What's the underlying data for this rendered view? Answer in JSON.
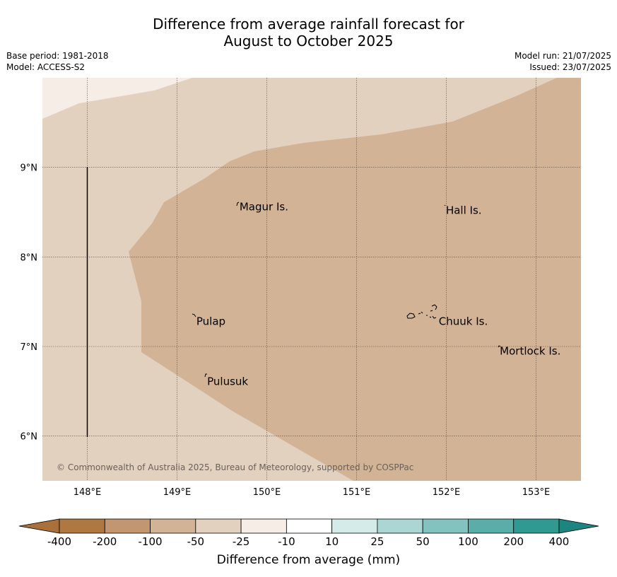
{
  "title": {
    "line1": "Difference from average rainfall forecast for",
    "line2": "August to October 2025"
  },
  "meta": {
    "base_period": "Base period: 1981-2018",
    "model": "Model: ACCESS-S2",
    "model_run": "Model run: 21/07/2025",
    "issued": "Issued: 23/07/2025"
  },
  "map": {
    "lon_range": [
      147.5,
      153.5
    ],
    "lat_range": [
      5.5,
      10.0
    ],
    "lon_ticks": [
      {
        "value": 148,
        "label": "148°E"
      },
      {
        "value": 149,
        "label": "149°E"
      },
      {
        "value": 150,
        "label": "150°E"
      },
      {
        "value": 151,
        "label": "151°E"
      },
      {
        "value": 152,
        "label": "152°E"
      },
      {
        "value": 153,
        "label": "153°E"
      }
    ],
    "lat_ticks": [
      {
        "value": 9,
        "label": "9°N"
      },
      {
        "value": 8,
        "label": "8°N"
      },
      {
        "value": 7,
        "label": "7°N"
      },
      {
        "value": 6,
        "label": "6°N"
      }
    ],
    "grid": true,
    "places": [
      {
        "name": "Magur Is.",
        "lon": 149.68,
        "lat": 8.56
      },
      {
        "name": "Hall Is.",
        "lon": 151.98,
        "lat": 8.52
      },
      {
        "name": "Pulap",
        "lon": 149.2,
        "lat": 7.28
      },
      {
        "name": "Chuuk Is.",
        "lon": 151.9,
        "lat": 7.28
      },
      {
        "name": "Mortlock Is.",
        "lon": 152.58,
        "lat": 6.95
      },
      {
        "name": "Pulusuk",
        "lon": 149.32,
        "lat": 6.61
      }
    ],
    "copyright": "© Commonwealth of Australia 2025, Bureau of Meteorology, supported by COSPPac",
    "colors": {
      "band_minus100_minus50": "#d2b395",
      "band_minus50_minus25": "#e3d1c0",
      "band_minus25_minus10": "#f6ede7"
    }
  },
  "colorbar": {
    "title": "Difference from average (mm)",
    "tick_labels": [
      "-400",
      "-200",
      "-100",
      "-50",
      "-25",
      "-10",
      "10",
      "25",
      "50",
      "100",
      "200",
      "400"
    ],
    "colors": [
      "#a9703b",
      "#af7843",
      "#c19670",
      "#d2b395",
      "#e3d1c0",
      "#f6ede7",
      "#ffffff",
      "#d5ebe9",
      "#abd6d3",
      "#83c3bf",
      "#5badaa",
      "#2f9992",
      "#1e8480"
    ]
  }
}
